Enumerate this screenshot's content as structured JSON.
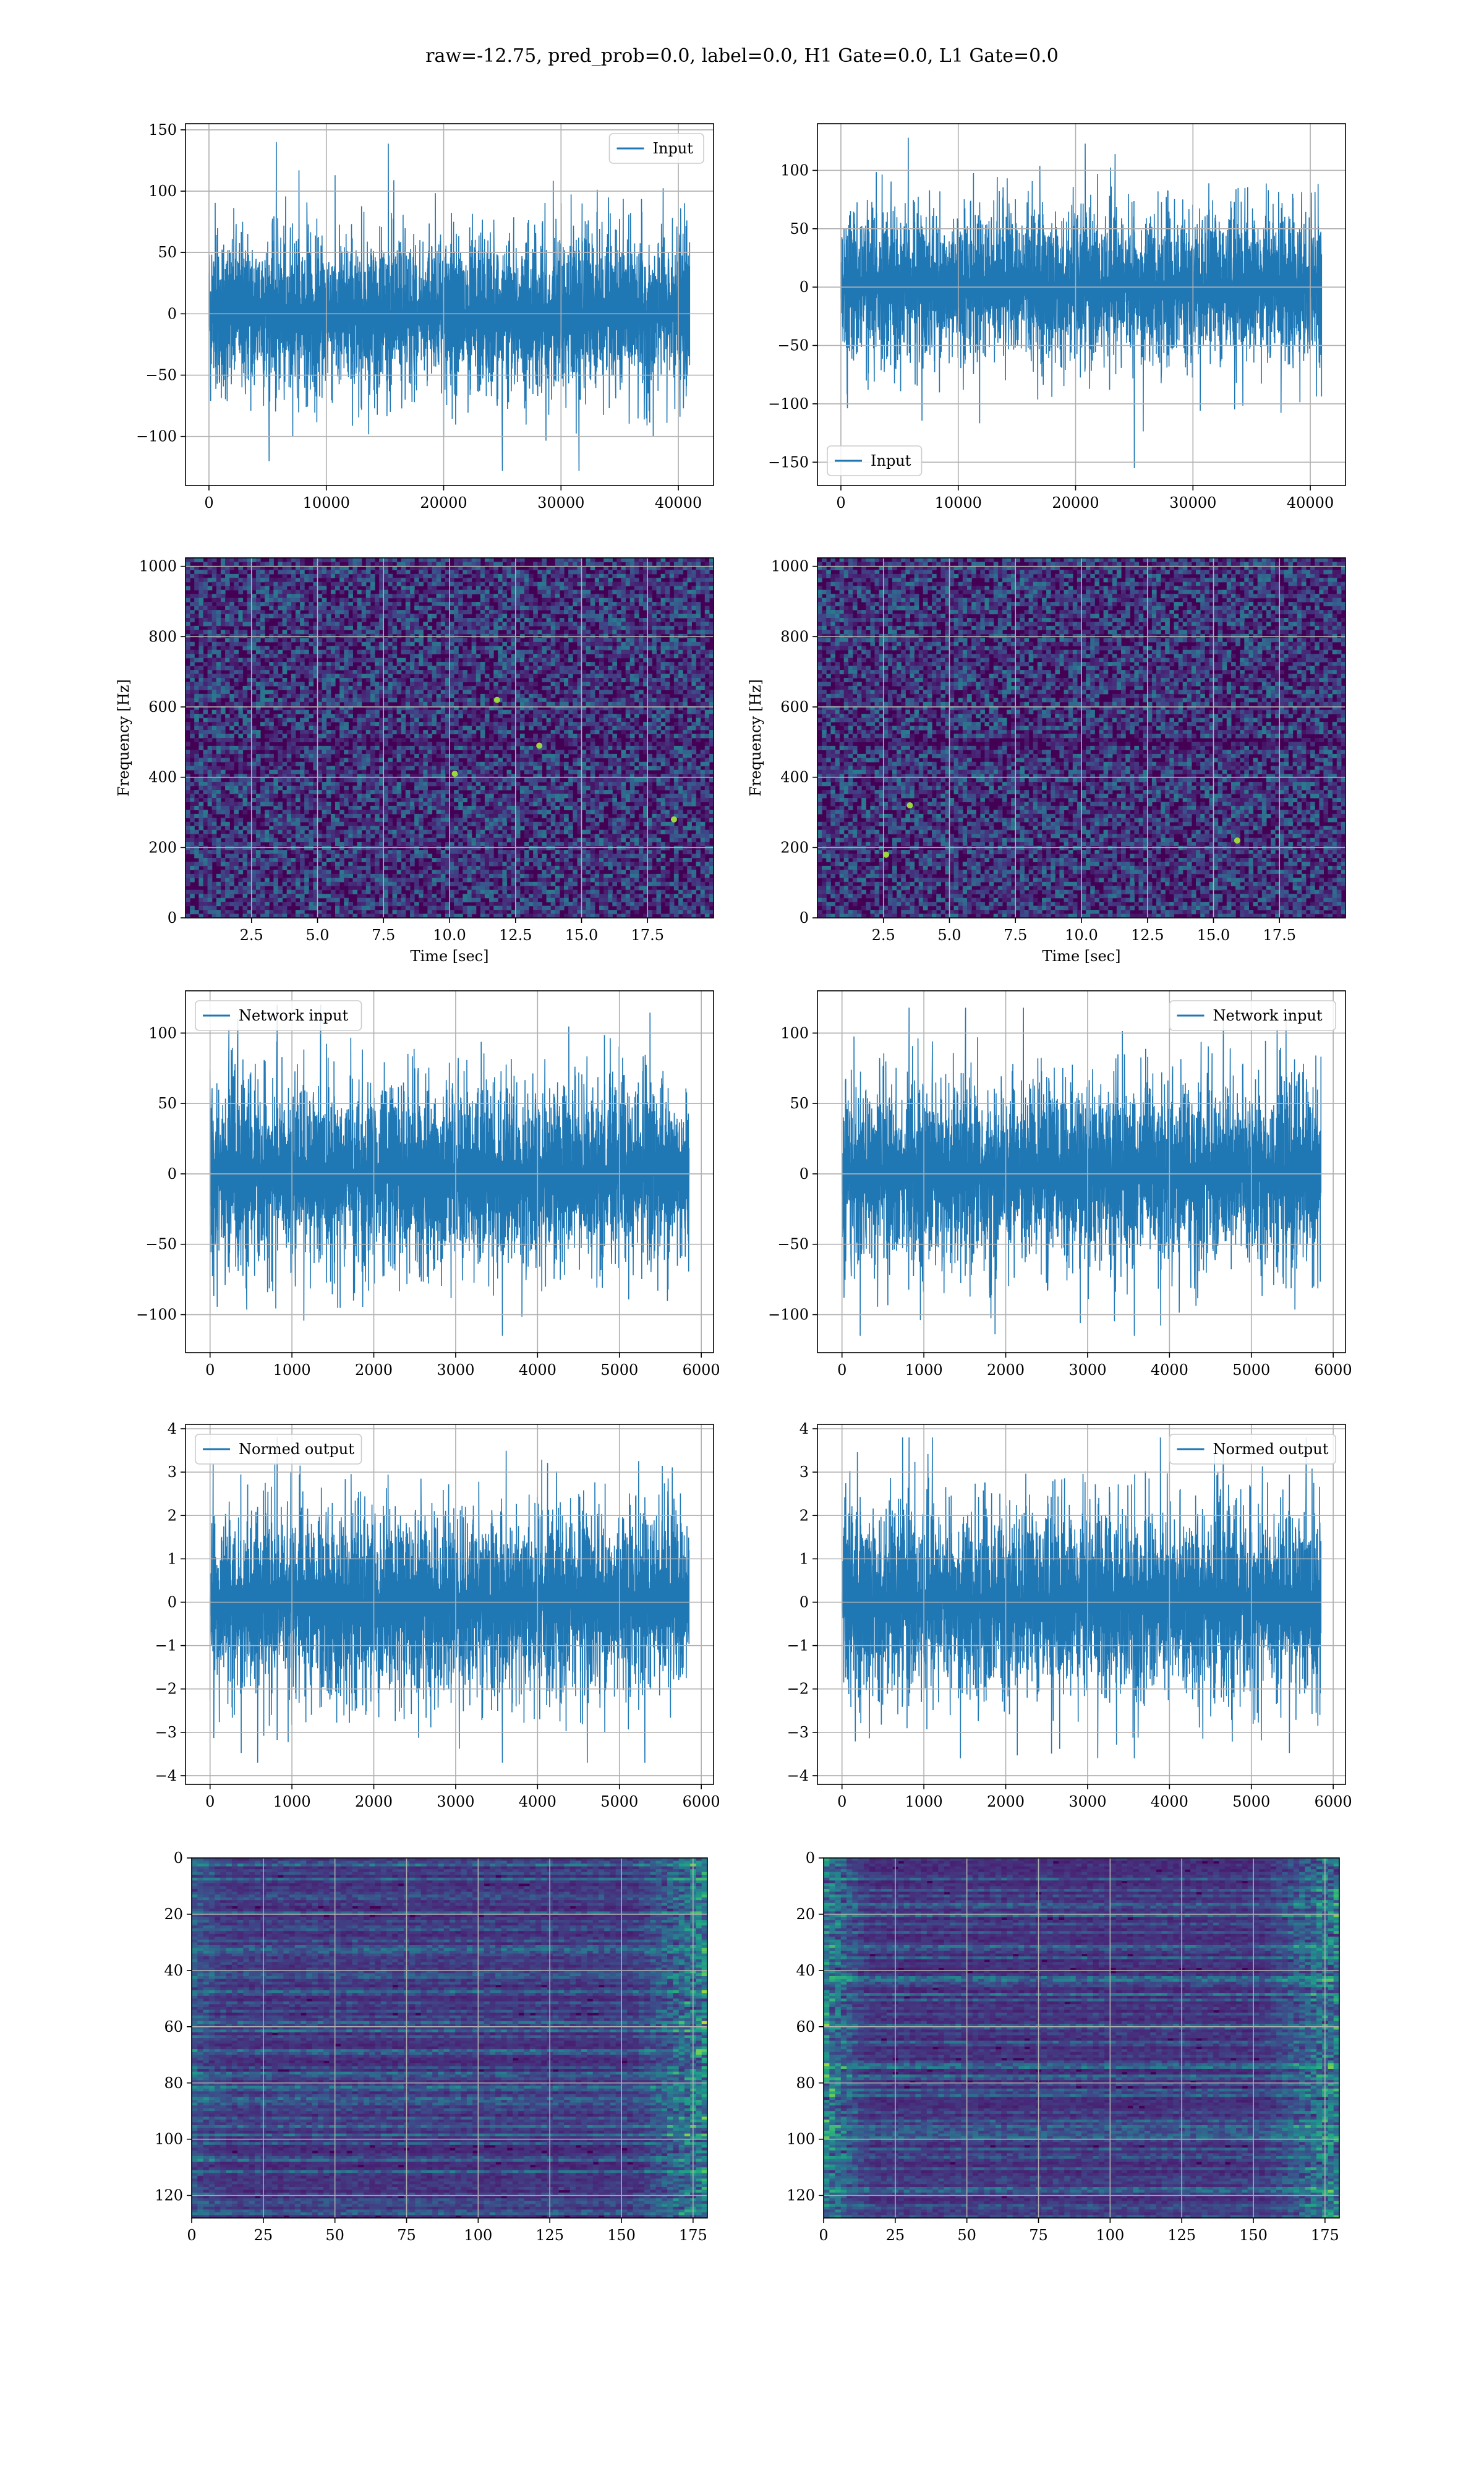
{
  "figure": {
    "suptitle": "raw=-12.75, pred_prob=0.0, label=0.0, H1 Gate=0.0, L1 Gate=0.0"
  },
  "colors": {
    "line": "#1f77b4",
    "grid": "#b0b0b0",
    "spine": "#000000",
    "viridis": [
      "#440154",
      "#482878",
      "#3e4989",
      "#31688e",
      "#26828e",
      "#1f9e89",
      "#35b779",
      "#6ece58",
      "#b5de2b",
      "#fde725"
    ]
  },
  "chart_data": [
    {
      "id": "h1-raw",
      "type": "line",
      "series": [
        {
          "name": "Input",
          "kind": "noise",
          "n": 40960,
          "xmax": 40960,
          "sigma": 30,
          "ymin": -128,
          "ymax": 140
        }
      ],
      "xlabel": "",
      "ylabel": "",
      "xlim": [
        -2000,
        43000
      ],
      "ylim": [
        -140,
        155
      ],
      "xticks": [
        0,
        10000,
        20000,
        30000,
        40000
      ],
      "yticks": [
        -100,
        -50,
        0,
        50,
        100,
        150
      ],
      "xticklabels": [
        "0",
        "10000",
        "20000",
        "30000",
        "40000"
      ],
      "yticklabels": [
        "−100",
        "−50",
        "0",
        "50",
        "100",
        "150"
      ],
      "legend": "upper right",
      "grid": true
    },
    {
      "id": "l1-raw",
      "type": "line",
      "series": [
        {
          "name": "Input",
          "kind": "noise",
          "n": 40960,
          "xmax": 40960,
          "sigma": 30,
          "ymin": -155,
          "ymax": 128
        }
      ],
      "xlabel": "",
      "ylabel": "",
      "xlim": [
        -2000,
        43000
      ],
      "ylim": [
        -170,
        140
      ],
      "xticks": [
        0,
        10000,
        20000,
        30000,
        40000
      ],
      "yticks": [
        -150,
        -100,
        -50,
        0,
        50,
        100
      ],
      "xticklabels": [
        "0",
        "10000",
        "20000",
        "30000",
        "40000"
      ],
      "yticklabels": [
        "−150",
        "−100",
        "−50",
        "0",
        "50",
        "100"
      ],
      "legend": "lower left",
      "grid": true
    },
    {
      "id": "h1-spec",
      "type": "heatmap",
      "xlabel": "Time [sec]",
      "ylabel": "Frequency [Hz]",
      "xlim": [
        0,
        20
      ],
      "ylim": [
        0,
        1024
      ],
      "grid": true,
      "xticks": [
        2.5,
        5,
        7.5,
        10,
        12.5,
        15,
        17.5
      ],
      "yticks": [
        0,
        200,
        400,
        600,
        800,
        1000
      ],
      "xticklabels": [
        "2.5",
        "5.0",
        "7.5",
        "10.0",
        "12.5",
        "15.0",
        "17.5"
      ],
      "yticklabels": [
        "0",
        "200",
        "400",
        "600",
        "800",
        "1000"
      ],
      "band": 500,
      "hotspots": [
        [
          13.4,
          490
        ],
        [
          11.8,
          620
        ],
        [
          18.5,
          280
        ],
        [
          10.2,
          410
        ]
      ]
    },
    {
      "id": "l1-spec",
      "type": "heatmap",
      "xlabel": "Time [sec]",
      "ylabel": "Frequency [Hz]",
      "xlim": [
        0,
        20
      ],
      "ylim": [
        0,
        1024
      ],
      "grid": true,
      "xticks": [
        2.5,
        5,
        7.5,
        10,
        12.5,
        15,
        17.5
      ],
      "yticks": [
        0,
        200,
        400,
        600,
        800,
        1000
      ],
      "xticklabels": [
        "2.5",
        "5.0",
        "7.5",
        "10.0",
        "12.5",
        "15.0",
        "17.5"
      ],
      "yticklabels": [
        "0",
        "200",
        "400",
        "600",
        "800",
        "1000"
      ],
      "band": 500,
      "hotspots": [
        [
          15.9,
          220
        ],
        [
          3.5,
          320
        ],
        [
          2.6,
          180
        ]
      ]
    },
    {
      "id": "h1-net",
      "type": "line",
      "series": [
        {
          "name": "Network input",
          "kind": "noise",
          "n": 5850,
          "xmax": 5850,
          "sigma": 30,
          "ymin": -115,
          "ymax": 120
        }
      ],
      "xlabel": "",
      "ylabel": "",
      "xlim": [
        -300,
        6150
      ],
      "ylim": [
        -127,
        130
      ],
      "xticks": [
        0,
        1000,
        2000,
        3000,
        4000,
        5000,
        6000
      ],
      "yticks": [
        -100,
        -50,
        0,
        50,
        100
      ],
      "xticklabels": [
        "0",
        "1000",
        "2000",
        "3000",
        "4000",
        "5000",
        "6000"
      ],
      "yticklabels": [
        "−100",
        "−50",
        "0",
        "50",
        "100"
      ],
      "legend": "upper left",
      "grid": true
    },
    {
      "id": "l1-net",
      "type": "line",
      "series": [
        {
          "name": "Network input",
          "kind": "noise",
          "n": 5850,
          "xmax": 5850,
          "sigma": 30,
          "ymin": -115,
          "ymax": 118
        }
      ],
      "xlabel": "",
      "ylabel": "",
      "xlim": [
        -300,
        6150
      ],
      "ylim": [
        -127,
        130
      ],
      "xticks": [
        0,
        1000,
        2000,
        3000,
        4000,
        5000,
        6000
      ],
      "yticks": [
        -100,
        -50,
        0,
        50,
        100
      ],
      "xticklabels": [
        "0",
        "1000",
        "2000",
        "3000",
        "4000",
        "5000",
        "6000"
      ],
      "yticklabels": [
        "−100",
        "−50",
        "0",
        "50",
        "100"
      ],
      "legend": "upper right",
      "grid": true
    },
    {
      "id": "h1-norm",
      "type": "line",
      "series": [
        {
          "name": "Normed output",
          "kind": "noise",
          "n": 5850,
          "xmax": 5850,
          "sigma": 1.0,
          "ymin": -3.7,
          "ymax": 3.8
        }
      ],
      "xlabel": "",
      "ylabel": "",
      "xlim": [
        -300,
        6150
      ],
      "ylim": [
        -4.2,
        4.1
      ],
      "xticks": [
        0,
        1000,
        2000,
        3000,
        4000,
        5000,
        6000
      ],
      "yticks": [
        -4,
        -3,
        -2,
        -1,
        0,
        1,
        2,
        3,
        4
      ],
      "xticklabels": [
        "0",
        "1000",
        "2000",
        "3000",
        "4000",
        "5000",
        "6000"
      ],
      "yticklabels": [
        "−4",
        "−3",
        "−2",
        "−1",
        "0",
        "1",
        "2",
        "3",
        "4"
      ],
      "legend": "upper left",
      "grid": true
    },
    {
      "id": "l1-norm",
      "type": "line",
      "series": [
        {
          "name": "Normed output",
          "kind": "noise",
          "n": 5850,
          "xmax": 5850,
          "sigma": 1.0,
          "ymin": -3.6,
          "ymax": 3.8
        }
      ],
      "xlabel": "",
      "ylabel": "",
      "xlim": [
        -300,
        6150
      ],
      "ylim": [
        -4.2,
        4.1
      ],
      "xticks": [
        0,
        1000,
        2000,
        3000,
        4000,
        5000,
        6000
      ],
      "yticks": [
        -4,
        -3,
        -2,
        -1,
        0,
        1,
        2,
        3,
        4
      ],
      "xticklabels": [
        "0",
        "1000",
        "2000",
        "3000",
        "4000",
        "5000",
        "6000"
      ],
      "yticklabels": [
        "−4",
        "−3",
        "−2",
        "−1",
        "0",
        "1",
        "2",
        "3",
        "4"
      ],
      "legend": "upper right",
      "grid": true
    },
    {
      "id": "h1-feat",
      "type": "heatmap",
      "xlabel": "",
      "ylabel": "",
      "xlim": [
        0,
        180
      ],
      "ylim": [
        128,
        0
      ],
      "grid": true,
      "xticks": [
        0,
        25,
        50,
        75,
        100,
        125,
        150,
        175
      ],
      "yticks": [
        0,
        20,
        40,
        60,
        80,
        100,
        120
      ],
      "xticklabels": [
        "0",
        "25",
        "50",
        "75",
        "100",
        "125",
        "150",
        "175"
      ],
      "yticklabels": [
        "0",
        "20",
        "40",
        "60",
        "80",
        "100",
        "120"
      ],
      "hot_side": "right"
    },
    {
      "id": "l1-feat",
      "type": "heatmap",
      "xlabel": "",
      "ylabel": "",
      "xlim": [
        0,
        180
      ],
      "ylim": [
        128,
        0
      ],
      "grid": true,
      "xticks": [
        0,
        25,
        50,
        75,
        100,
        125,
        150,
        175
      ],
      "yticks": [
        0,
        20,
        40,
        60,
        80,
        100,
        120
      ],
      "xticklabels": [
        "0",
        "25",
        "50",
        "75",
        "100",
        "125",
        "150",
        "175"
      ],
      "yticklabels": [
        "0",
        "20",
        "40",
        "60",
        "80",
        "100",
        "120"
      ],
      "hot_side": "both"
    }
  ]
}
